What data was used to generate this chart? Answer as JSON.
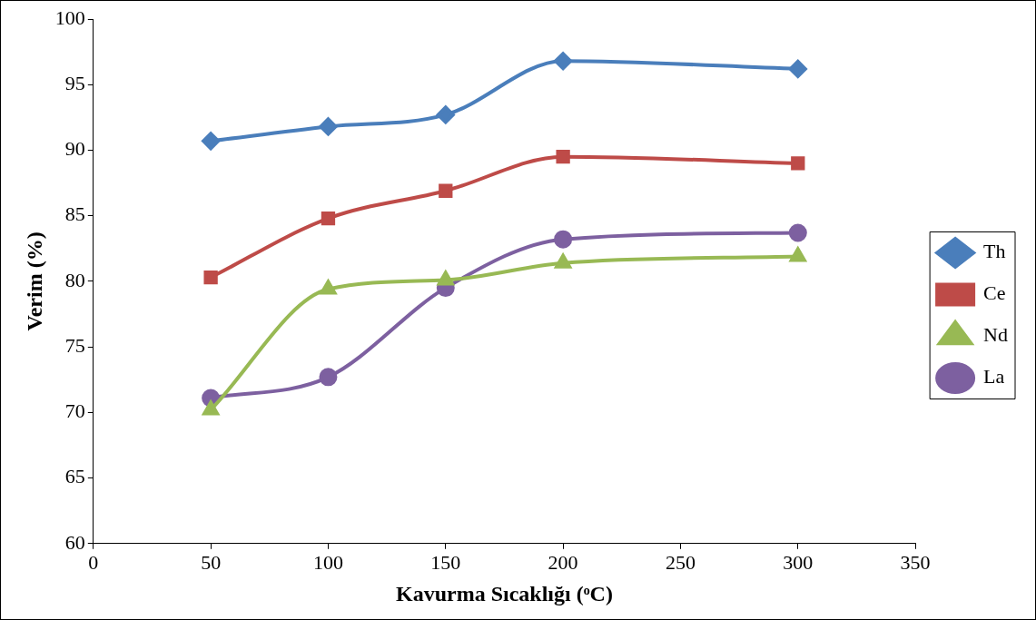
{
  "chart_data": {
    "type": "line",
    "xlabel": "Kavurma Sıcaklığı (ᵒC)",
    "ylabel": "Verim (%)",
    "x": [
      50,
      100,
      150,
      200,
      300
    ],
    "series": [
      {
        "name": "Th",
        "color": "#4a7ebb",
        "marker": "diamond",
        "values": [
          90.7,
          91.8,
          92.7,
          96.8,
          96.2
        ]
      },
      {
        "name": "Ce",
        "color": "#be4b48",
        "marker": "square",
        "values": [
          80.3,
          84.8,
          86.9,
          89.5,
          89.0
        ]
      },
      {
        "name": "Nd",
        "color": "#98b954",
        "marker": "triangle",
        "values": [
          70.2,
          79.4,
          80.1,
          81.4,
          81.9
        ]
      },
      {
        "name": "La",
        "color": "#7d60a0",
        "marker": "circle",
        "values": [
          71.1,
          72.7,
          79.5,
          83.2,
          83.7
        ]
      }
    ],
    "xlim": [
      0,
      350
    ],
    "xticks": [
      0,
      50,
      100,
      150,
      200,
      250,
      300,
      350
    ],
    "ylim": [
      60,
      100
    ],
    "yticks": [
      60,
      65,
      70,
      75,
      80,
      85,
      90,
      95,
      100
    ],
    "grid": false,
    "legend": "right"
  }
}
